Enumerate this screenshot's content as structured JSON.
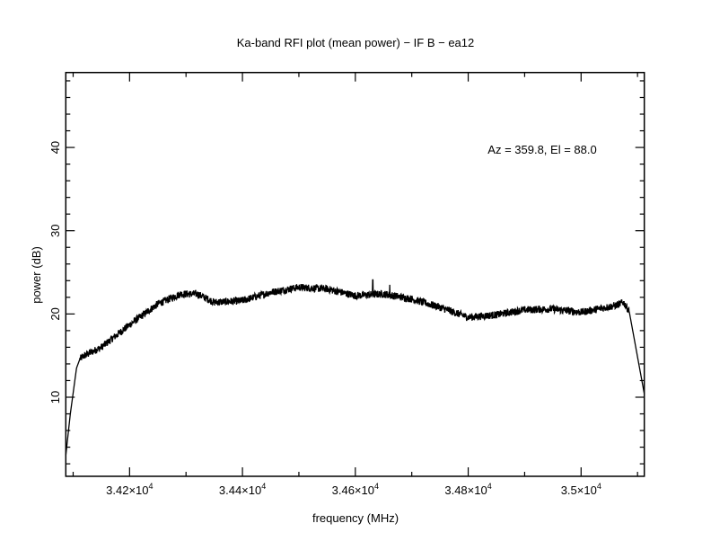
{
  "chart_data": {
    "type": "line",
    "title": "Ka-band RFI plot (mean power) − IF B − ea12",
    "annotation": "Az = 359.8, El = 88.0",
    "xlabel": "frequency (MHz)",
    "ylabel": "power (dB)",
    "xlim": [
      34087,
      35112
    ],
    "ylim": [
      0.5,
      49
    ],
    "grid": false,
    "x_ticks": [
      {
        "value": 34200,
        "mantissa": "3.42×10",
        "exp": "4"
      },
      {
        "value": 34400,
        "mantissa": "3.44×10",
        "exp": "4"
      },
      {
        "value": 34600,
        "mantissa": "3.46×10",
        "exp": "4"
      },
      {
        "value": 34800,
        "mantissa": "3.48×10",
        "exp": "4"
      },
      {
        "value": 35000,
        "mantissa": "3.5×10",
        "exp": "4"
      }
    ],
    "x_minor_step": 100,
    "y_ticks": [
      {
        "value": 10,
        "label": "10"
      },
      {
        "value": 20,
        "label": "20"
      },
      {
        "value": 30,
        "label": "30"
      },
      {
        "value": 40,
        "label": "40"
      }
    ],
    "y_minor_step": 2,
    "series": [
      {
        "name": "mean power",
        "color": "#000000",
        "x": [
          34087,
          34095,
          34100,
          34106,
          34112,
          34120,
          34150,
          34200,
          34250,
          34290,
          34320,
          34350,
          34400,
          34450,
          34500,
          34550,
          34600,
          34650,
          34700,
          34750,
          34800,
          34850,
          34900,
          34950,
          35000,
          35030,
          35060,
          35075,
          35085,
          35112
        ],
        "y": [
          3,
          8,
          10.5,
          13.5,
          14.6,
          15,
          16,
          18.7,
          21.2,
          22.4,
          22.4,
          21.4,
          21.6,
          22.6,
          23.2,
          23,
          22.2,
          22.4,
          21.8,
          20.8,
          19.6,
          19.9,
          20.5,
          20.6,
          20.2,
          20.6,
          21,
          21.4,
          20.4,
          10.4
        ]
      }
    ],
    "spikes": [
      {
        "x": 34631,
        "y": 24.1
      },
      {
        "x": 34661,
        "y": 23.5
      }
    ]
  }
}
